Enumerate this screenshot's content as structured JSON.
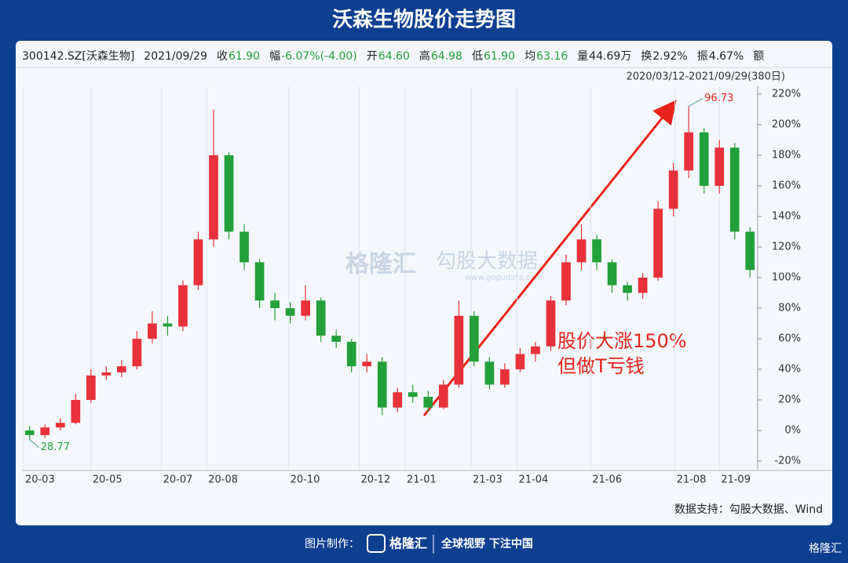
{
  "header": {
    "title": "沃森生物股价走势图",
    "info": [
      "300142.SZ[沃森生物]",
      "2021/09/29",
      "收",
      "61.90",
      "幅",
      "-6.07%(-4.00)",
      "开",
      "64.60",
      "高",
      "64.98",
      "低",
      "61.90",
      "均",
      "63.16",
      "量",
      "44.69万",
      "换",
      "2.92%",
      "振",
      "4.67%",
      "额"
    ],
    "range": "2020/03/12-2021/09/29(380日)"
  },
  "watermark": {
    "brand": "格隆汇",
    "data": "勾股大数据",
    "url": "www.gogudata.com"
  },
  "chart_data": {
    "type": "candlestick",
    "x": [
      0,
      1,
      2,
      3,
      4,
      5,
      6,
      7,
      8,
      9,
      10,
      11,
      12,
      13,
      14,
      15,
      16,
      17,
      18,
      19,
      20,
      21,
      22,
      23,
      24,
      25,
      26,
      27,
      28,
      29,
      30,
      31,
      32,
      33,
      34,
      35,
      36,
      37,
      38,
      39,
      40,
      41,
      42,
      43,
      44,
      45,
      46,
      47
    ],
    "open": [
      0,
      -3,
      2,
      5,
      20,
      36,
      38,
      42,
      60,
      70,
      68,
      95,
      125,
      180,
      130,
      110,
      85,
      80,
      75,
      85,
      62,
      58,
      42,
      45,
      15,
      25,
      22,
      15,
      30,
      75,
      45,
      30,
      40,
      50,
      55,
      85,
      110,
      125,
      110,
      95,
      90,
      100,
      145,
      170,
      195,
      160,
      185,
      130
    ],
    "high": [
      3,
      4,
      8,
      24,
      40,
      42,
      46,
      65,
      78,
      75,
      98,
      130,
      210,
      182,
      135,
      112,
      90,
      84,
      95,
      87,
      66,
      60,
      50,
      48,
      28,
      30,
      26,
      33,
      85,
      78,
      48,
      44,
      54,
      58,
      88,
      115,
      135,
      128,
      112,
      97,
      103,
      150,
      175,
      212,
      198,
      190,
      188,
      133
    ],
    "low": [
      -6,
      -5,
      0,
      4,
      18,
      33,
      35,
      40,
      57,
      62,
      65,
      92,
      120,
      125,
      105,
      80,
      72,
      70,
      72,
      58,
      54,
      38,
      38,
      10,
      12,
      18,
      12,
      14,
      28,
      42,
      27,
      28,
      38,
      45,
      52,
      82,
      105,
      105,
      90,
      85,
      86,
      98,
      140,
      165,
      155,
      155,
      125,
      100
    ],
    "close": [
      -3,
      2,
      5,
      20,
      36,
      38,
      42,
      60,
      70,
      68,
      95,
      125,
      180,
      130,
      110,
      85,
      80,
      75,
      85,
      62,
      58,
      42,
      45,
      15,
      25,
      22,
      15,
      30,
      75,
      45,
      30,
      40,
      50,
      55,
      85,
      110,
      125,
      110,
      95,
      90,
      100,
      145,
      170,
      195,
      160,
      185,
      130,
      105
    ],
    "up_color": "#e8313a",
    "down_color": "#23a03a",
    "xlim": [
      -0.5,
      47.5
    ],
    "xticks": [
      {
        "value": -0.4,
        "label": "20-03"
      },
      {
        "value": 4,
        "label": "20-05"
      },
      {
        "value": 8.6,
        "label": "20-07"
      },
      {
        "value": 11.55,
        "label": "20-08"
      },
      {
        "value": 16.9,
        "label": "20-10"
      },
      {
        "value": 21.5,
        "label": "20-12"
      },
      {
        "value": 24.5,
        "label": "21-01"
      },
      {
        "value": 28.8,
        "label": "21-03"
      },
      {
        "value": 31.8,
        "label": "21-04"
      },
      {
        "value": 36.6,
        "label": "21-06"
      },
      {
        "value": 42.1,
        "label": "21-08"
      },
      {
        "value": 45,
        "label": "21-09"
      }
    ],
    "ylim": [
      -20,
      220
    ],
    "yticks": [
      {
        "value": -20,
        "label": "-20%"
      },
      {
        "value": 0,
        "label": "0%"
      },
      {
        "value": 20,
        "label": "20%"
      },
      {
        "value": 40,
        "label": "40%"
      },
      {
        "value": 60,
        "label": "60%"
      },
      {
        "value": 80,
        "label": "80%"
      },
      {
        "value": 100,
        "label": "100%"
      },
      {
        "value": 120,
        "label": "120%"
      },
      {
        "value": 140,
        "label": "140%"
      },
      {
        "value": 160,
        "label": "160%"
      },
      {
        "value": 180,
        "label": "180%"
      },
      {
        "value": 200,
        "label": "200%"
      },
      {
        "value": 220,
        "label": "220%"
      }
    ],
    "grid": true,
    "high_label": "96.73",
    "low_label": "28.77",
    "annotation": [
      "股价大涨150%",
      "但做T亏钱"
    ]
  },
  "footer": {
    "source": "数据支持：勾股大数据、Wind",
    "made_by": "图片制作：",
    "brand": "格隆汇",
    "slogan": "全球视野 下注中国"
  }
}
